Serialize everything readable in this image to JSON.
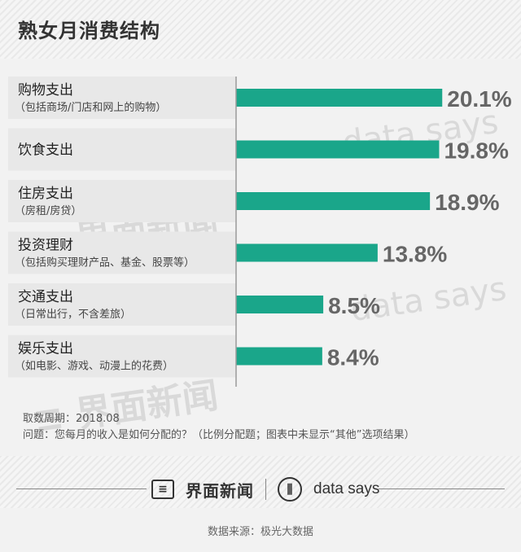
{
  "title": "熟女月消费结构",
  "chart_data": {
    "type": "bar",
    "orientation": "horizontal",
    "categories": [
      {
        "name": "购物支出",
        "sub": "（包括商场/门店和网上的购物）"
      },
      {
        "name": "饮食支出",
        "sub": ""
      },
      {
        "name": "住房支出",
        "sub": "（房租/房贷）"
      },
      {
        "name": "投资理财",
        "sub": "（包括购买理财产品、基金、股票等）"
      },
      {
        "name": "交通支出",
        "sub": "（日常出行，不含差旅）"
      },
      {
        "name": "娱乐支出",
        "sub": "（如电影、游戏、动漫上的花费）"
      }
    ],
    "values": [
      20.1,
      19.8,
      18.9,
      13.8,
      8.5,
      8.4
    ],
    "value_labels": [
      "20.1%",
      "19.8%",
      "18.9%",
      "13.8%",
      "8.5%",
      "8.4%"
    ],
    "xlim": [
      0,
      25
    ],
    "bar_color": "#1aa68a",
    "grid": false
  },
  "footnotes": {
    "period": "取数周期：2018.08",
    "question": "问题：您每月的收入是如何分配的？（比例分配题；图表中未显示“其他”选项结果）"
  },
  "watermarks": {
    "brand_cn": "界面新闻",
    "brand_en": "data says",
    "logo_glyph": "≡"
  },
  "brand": {
    "logo_glyph": "≡",
    "name": "界面新闻",
    "ds_glyph": "⫼",
    "ds_name": "data says"
  },
  "source": "数据来源：极光大数据",
  "colors": {
    "bar": "#1aa68a",
    "background": "#f2f2f2",
    "row_band": "#e8e8e8"
  }
}
